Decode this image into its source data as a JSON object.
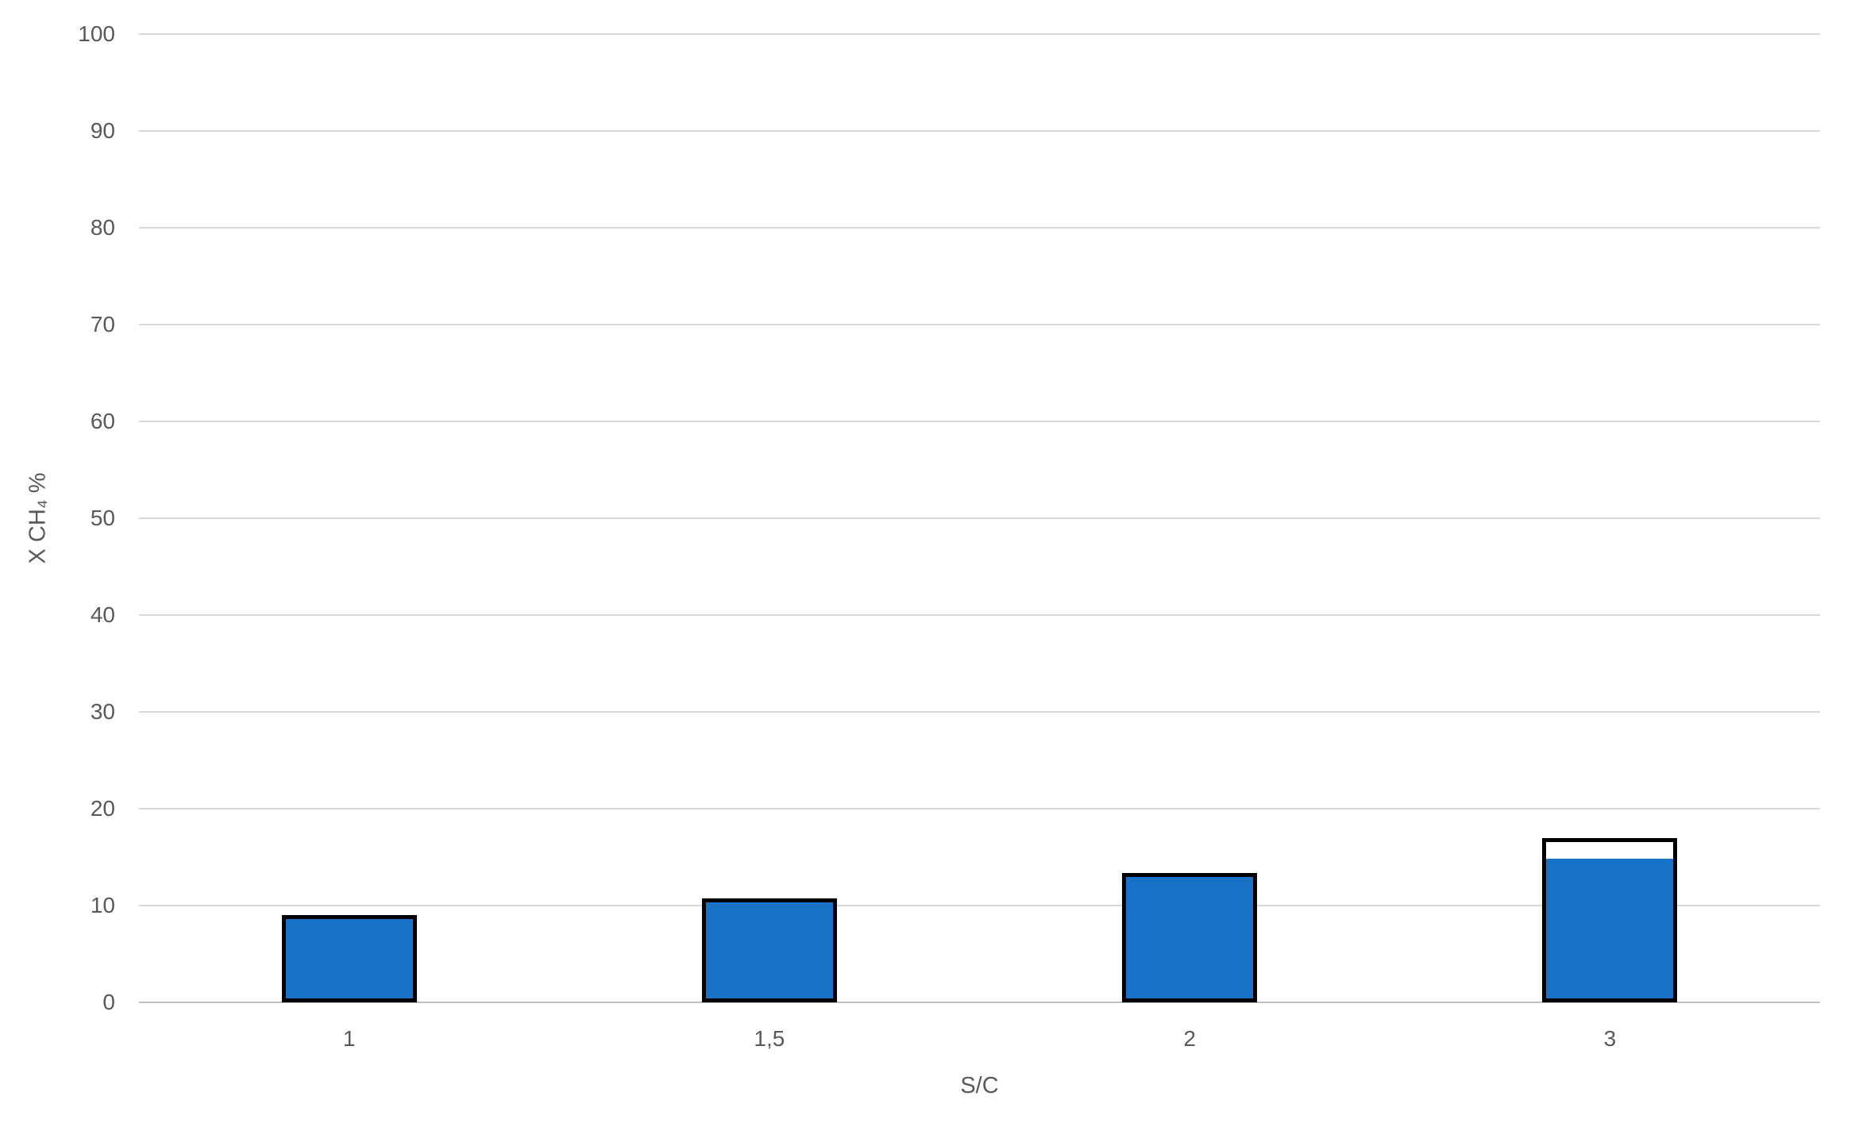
{
  "chart_data": {
    "type": "bar",
    "title": "",
    "xlabel": "S/C",
    "ylabel": "X CH₄ %",
    "categories": [
      "1",
      "1,5",
      "2",
      "3"
    ],
    "series": [
      {
        "name": "blue-filled-bars",
        "color": "#1772C8",
        "values": [
          9.0,
          10.7,
          13.4,
          14.8
        ]
      },
      {
        "name": "black-outline-bars",
        "color": "#000000",
        "values": [
          9.0,
          10.7,
          13.4,
          17.0
        ]
      }
    ],
    "ylim": [
      0,
      100
    ],
    "yticks": [
      0,
      10,
      20,
      30,
      40,
      50,
      60,
      70,
      80,
      90,
      100
    ],
    "grid": true,
    "legend_position": "none"
  },
  "colors": {
    "bar_fill": "#1772C8",
    "bar_outline": "#000000",
    "gridline": "#D9D9D9",
    "axis_line": "#BFBFBF",
    "text": "#595959",
    "background": "#FFFFFF"
  }
}
